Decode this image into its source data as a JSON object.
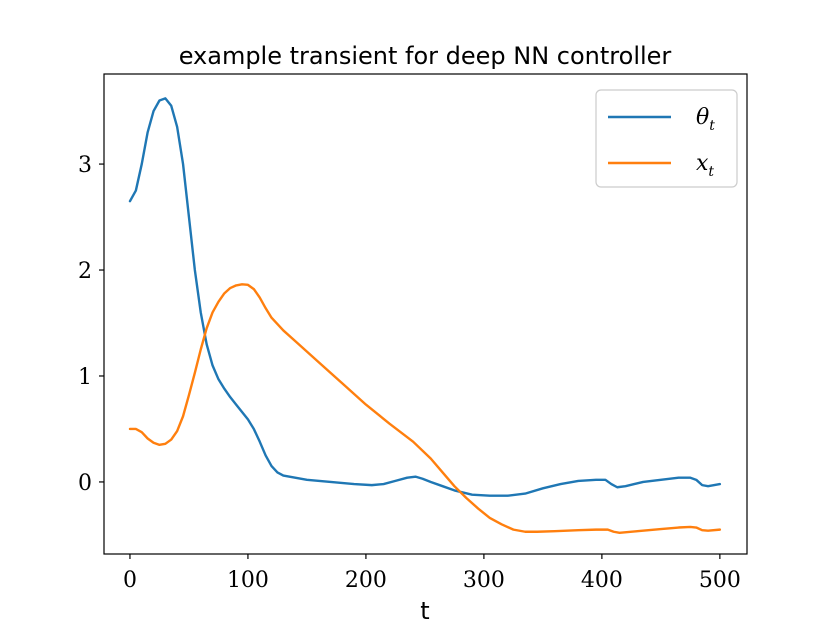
{
  "chart_data": {
    "type": "line",
    "title": "example transient for deep NN controller",
    "xlabel": "t",
    "ylabel": "",
    "xlim": [
      -22,
      523
    ],
    "ylim": [
      -0.68,
      3.85
    ],
    "xticks": [
      0,
      100,
      200,
      300,
      400,
      500
    ],
    "yticks": [
      0,
      1,
      2,
      3
    ],
    "grid": false,
    "legend_position": "top-right",
    "series": [
      {
        "name": "θ_t",
        "label_main": "θ",
        "label_sub": "t",
        "color": "#1f77b4",
        "points": [
          [
            0,
            2.65
          ],
          [
            5,
            2.75
          ],
          [
            10,
            3.0
          ],
          [
            15,
            3.3
          ],
          [
            20,
            3.5
          ],
          [
            25,
            3.6
          ],
          [
            30,
            3.62
          ],
          [
            35,
            3.55
          ],
          [
            40,
            3.35
          ],
          [
            45,
            3.0
          ],
          [
            50,
            2.5
          ],
          [
            55,
            2.0
          ],
          [
            60,
            1.6
          ],
          [
            65,
            1.3
          ],
          [
            70,
            1.1
          ],
          [
            75,
            0.97
          ],
          [
            80,
            0.88
          ],
          [
            85,
            0.8
          ],
          [
            90,
            0.73
          ],
          [
            95,
            0.66
          ],
          [
            100,
            0.59
          ],
          [
            105,
            0.5
          ],
          [
            110,
            0.38
          ],
          [
            115,
            0.25
          ],
          [
            120,
            0.15
          ],
          [
            125,
            0.09
          ],
          [
            130,
            0.06
          ],
          [
            140,
            0.04
          ],
          [
            150,
            0.02
          ],
          [
            170,
            0.0
          ],
          [
            190,
            -0.02
          ],
          [
            205,
            -0.03
          ],
          [
            215,
            -0.02
          ],
          [
            225,
            0.01
          ],
          [
            235,
            0.04
          ],
          [
            242,
            0.05
          ],
          [
            248,
            0.03
          ],
          [
            255,
            0.0
          ],
          [
            265,
            -0.04
          ],
          [
            275,
            -0.08
          ],
          [
            290,
            -0.12
          ],
          [
            305,
            -0.13
          ],
          [
            320,
            -0.13
          ],
          [
            335,
            -0.11
          ],
          [
            350,
            -0.06
          ],
          [
            365,
            -0.02
          ],
          [
            380,
            0.01
          ],
          [
            395,
            0.02
          ],
          [
            403,
            0.02
          ],
          [
            408,
            -0.02
          ],
          [
            413,
            -0.05
          ],
          [
            420,
            -0.04
          ],
          [
            435,
            0.0
          ],
          [
            450,
            0.02
          ],
          [
            465,
            0.04
          ],
          [
            475,
            0.04
          ],
          [
            480,
            0.02
          ],
          [
            485,
            -0.03
          ],
          [
            490,
            -0.04
          ],
          [
            500,
            -0.02
          ]
        ]
      },
      {
        "name": "x_t",
        "label_main": "x",
        "label_sub": "t",
        "color": "#ff7f0e",
        "points": [
          [
            0,
            0.5
          ],
          [
            5,
            0.5
          ],
          [
            10,
            0.47
          ],
          [
            15,
            0.41
          ],
          [
            20,
            0.37
          ],
          [
            25,
            0.35
          ],
          [
            30,
            0.36
          ],
          [
            35,
            0.4
          ],
          [
            40,
            0.48
          ],
          [
            45,
            0.62
          ],
          [
            50,
            0.82
          ],
          [
            55,
            1.03
          ],
          [
            60,
            1.25
          ],
          [
            65,
            1.45
          ],
          [
            70,
            1.6
          ],
          [
            75,
            1.7
          ],
          [
            80,
            1.78
          ],
          [
            85,
            1.83
          ],
          [
            90,
            1.855
          ],
          [
            95,
            1.865
          ],
          [
            100,
            1.86
          ],
          [
            105,
            1.82
          ],
          [
            110,
            1.74
          ],
          [
            115,
            1.64
          ],
          [
            120,
            1.55
          ],
          [
            130,
            1.43
          ],
          [
            140,
            1.33
          ],
          [
            160,
            1.13
          ],
          [
            180,
            0.93
          ],
          [
            200,
            0.73
          ],
          [
            220,
            0.55
          ],
          [
            240,
            0.38
          ],
          [
            255,
            0.22
          ],
          [
            265,
            0.09
          ],
          [
            275,
            -0.04
          ],
          [
            285,
            -0.15
          ],
          [
            295,
            -0.25
          ],
          [
            305,
            -0.34
          ],
          [
            315,
            -0.4
          ],
          [
            325,
            -0.45
          ],
          [
            335,
            -0.47
          ],
          [
            345,
            -0.47
          ],
          [
            360,
            -0.465
          ],
          [
            380,
            -0.455
          ],
          [
            395,
            -0.45
          ],
          [
            405,
            -0.45
          ],
          [
            410,
            -0.47
          ],
          [
            415,
            -0.48
          ],
          [
            430,
            -0.465
          ],
          [
            450,
            -0.445
          ],
          [
            465,
            -0.43
          ],
          [
            475,
            -0.425
          ],
          [
            480,
            -0.43
          ],
          [
            485,
            -0.455
          ],
          [
            490,
            -0.46
          ],
          [
            500,
            -0.45
          ]
        ]
      }
    ]
  }
}
